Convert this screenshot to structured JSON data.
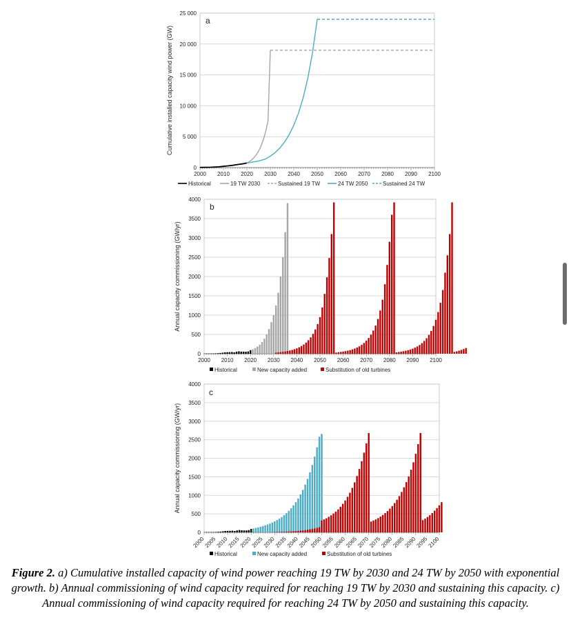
{
  "caption": {
    "label": "Figure 2.",
    "text": " a) Cumulative installed capacity of wind power reaching 19 TW by 2030 and 24 TW by 2050 with exponential growth. b) Annual commissioning of wind capacity required for reaching 19 TW by 2030 and sustaining this capacity. c) Annual commissioning of wind capacity required for reaching 24 TW by 2050 and sustaining this capacity."
  },
  "colors": {
    "historical": "#000000",
    "grey_series": "#a6a6a6",
    "blue_series": "#4bacc6",
    "red_series": "#c00000",
    "grid": "#d9d9d9"
  },
  "chart_data": [
    {
      "panel": "a",
      "type": "line",
      "ylabel": "Cumulative installed capacity wind power (GW)",
      "xlim": [
        2000,
        2100
      ],
      "ylim": [
        0,
        25000
      ],
      "xticks": [
        "2000",
        "2010",
        "2020",
        "2030",
        "2040",
        "2050",
        "2060",
        "2070",
        "2080",
        "2090",
        "2100"
      ],
      "yticks": [
        "0",
        "5 000",
        "10 000",
        "15 000",
        "20 000",
        "25 000"
      ],
      "grid": "horizontal",
      "legend_position": "bottom",
      "series": [
        {
          "name": "Historical",
          "style": "solid",
          "color": "#000000",
          "points": [
            [
              2000,
              18
            ],
            [
              2002,
              31
            ],
            [
              2004,
              48
            ],
            [
              2006,
              74
            ],
            [
              2008,
              121
            ],
            [
              2010,
              198
            ],
            [
              2012,
              283
            ],
            [
              2014,
              370
            ],
            [
              2016,
              487
            ],
            [
              2018,
              591
            ],
            [
              2020,
              733
            ]
          ]
        },
        {
          "name": "19 TW 2030",
          "style": "solid",
          "color": "#a6a6a6",
          "points": [
            [
              2020,
              733
            ],
            [
              2021,
              950
            ],
            [
              2022,
              1230
            ],
            [
              2023,
              1590
            ],
            [
              2024,
              2060
            ],
            [
              2025,
              2670
            ],
            [
              2026,
              3460
            ],
            [
              2027,
              4480
            ],
            [
              2028,
              5800
            ],
            [
              2029,
              7510
            ],
            [
              2030,
              19000
            ]
          ]
        },
        {
          "name": "Sustained 19 TW",
          "style": "dashed",
          "color": "#a6a6a6",
          "points": [
            [
              2030,
              19000
            ],
            [
              2100,
              19000
            ]
          ]
        },
        {
          "name": "24 TW 2050",
          "style": "solid",
          "color": "#4bacc6",
          "points": [
            [
              2020,
              733
            ],
            [
              2025,
              1050
            ],
            [
              2028,
              1400
            ],
            [
              2030,
              1850
            ],
            [
              2032,
              2400
            ],
            [
              2034,
              3150
            ],
            [
              2036,
              4100
            ],
            [
              2038,
              5300
            ],
            [
              2040,
              6850
            ],
            [
              2042,
              8800
            ],
            [
              2044,
              11300
            ],
            [
              2046,
              14500
            ],
            [
              2048,
              18600
            ],
            [
              2050,
              24000
            ]
          ]
        },
        {
          "name": "Sustained 24 TW",
          "style": "dashed",
          "color": "#4bacc6",
          "points": [
            [
              2050,
              24000
            ],
            [
              2100,
              24000
            ]
          ]
        }
      ]
    },
    {
      "panel": "b",
      "type": "bar",
      "ylabel": "Annual capacity commissioning (GW/yr)",
      "xlim": [
        2000,
        2100
      ],
      "ylim": [
        0,
        4000
      ],
      "xticks": [
        "2000",
        "2010",
        "2020",
        "2030",
        "2040",
        "2050",
        "2060",
        "2070",
        "2080",
        "2090",
        "2100"
      ],
      "yticks": [
        "0",
        "500",
        "1000",
        "1500",
        "2000",
        "2500",
        "3000",
        "3500",
        "4000"
      ],
      "grid": "horizontal",
      "legend_position": "bottom",
      "series": [
        {
          "name": "Historical",
          "color": "#000000",
          "start_year": 2000,
          "values": [
            4,
            7,
            7,
            8,
            8,
            11,
            15,
            20,
            28,
            38,
            40,
            41,
            45,
            36,
            52,
            63,
            55,
            53,
            51,
            60,
            93
          ]
        },
        {
          "name": "New capacity added",
          "color": "#a6a6a6",
          "start_year": 2021,
          "values": [
            115,
            145,
            185,
            235,
            305,
            390,
            500,
            640,
            820,
            1000,
            1250,
            1580,
            2000,
            2500,
            3150,
            3900
          ]
        },
        {
          "name": "Substitution of old turbines",
          "color": "#c00000",
          "start_year": 2031,
          "values": [
            30,
            35,
            42,
            50,
            60,
            72,
            85,
            100,
            118,
            140,
            168,
            200,
            240,
            290,
            350,
            425,
            515,
            630,
            770,
            950,
            1200,
            1550,
            1980,
            2480,
            3100,
            3920,
            30,
            40,
            48,
            57,
            68,
            80,
            95,
            113,
            135,
            162,
            193,
            232,
            280,
            338,
            408,
            495,
            600,
            730,
            900,
            1120,
            1400,
            1800,
            2300,
            2900,
            3600,
            3920,
            35,
            45,
            55,
            65,
            78,
            93,
            110,
            132,
            158,
            190,
            228,
            275,
            332,
            402,
            488,
            592,
            720,
            880,
            1080,
            1320,
            1650,
            2100,
            2550,
            3100,
            3920,
            48,
            62,
            80,
            100,
            122,
            148
          ]
        }
      ]
    },
    {
      "panel": "c",
      "type": "bar",
      "ylabel": "Annual capacity commissioning (GW/yr)",
      "xlim": [
        2000,
        2100
      ],
      "ylim": [
        0,
        4000
      ],
      "xticks": [
        "2000",
        "2005",
        "2010",
        "2015",
        "2020",
        "2025",
        "2030",
        "2035",
        "2040",
        "2045",
        "2050",
        "2055",
        "2060",
        "2065",
        "2070",
        "2075",
        "2080",
        "2085",
        "2090",
        "2095",
        "2100"
      ],
      "yticks": [
        "0",
        "500",
        "1000",
        "1500",
        "2000",
        "2500",
        "3000",
        "3500",
        "4000"
      ],
      "grid": "horizontal",
      "legend_position": "bottom",
      "series": [
        {
          "name": "Historical",
          "color": "#000000",
          "start_year": 2000,
          "values": [
            4,
            7,
            7,
            8,
            8,
            11,
            15,
            20,
            28,
            38,
            40,
            41,
            45,
            36,
            52,
            63,
            55,
            53,
            51,
            60,
            93
          ]
        },
        {
          "name": "New capacity added",
          "color": "#4bacc6",
          "start_year": 2021,
          "values": [
            105,
            120,
            135,
            152,
            170,
            190,
            212,
            237,
            265,
            296,
            331,
            370,
            414,
            463,
            518,
            580,
            650,
            728,
            815,
            913,
            1023,
            1147,
            1286,
            1443,
            1620,
            1818,
            2042,
            2295,
            2580,
            2655
          ]
        },
        {
          "name": "Substitution of old turbines",
          "color": "#c00000",
          "start_year": 2030,
          "values": [
            8,
            10,
            12,
            14,
            16,
            19,
            22,
            26,
            30,
            35,
            40,
            45,
            52,
            60,
            70,
            80,
            92,
            105,
            120,
            140,
            320,
            350,
            380,
            420,
            460,
            510,
            560,
            620,
            690,
            770,
            860,
            960,
            1070,
            1200,
            1350,
            1520,
            1710,
            1920,
            2150,
            2400,
            2680,
            290,
            320,
            350,
            385,
            425,
            470,
            520,
            575,
            640,
            710,
            790,
            880,
            980,
            1090,
            1215,
            1355,
            1510,
            1690,
            1890,
            2120,
            2380,
            2680,
            330,
            370,
            415,
            465,
            520,
            585,
            655,
            730,
            815
          ]
        }
      ]
    }
  ],
  "legends": {
    "a": [
      "Historical",
      "19 TW 2030",
      "Sustained 19 TW",
      "24 TW 2050",
      "Sustained 24 TW"
    ],
    "b": [
      "Historical",
      "New capacity added",
      "Substitution of old turbines"
    ],
    "c": [
      "Historical",
      "New capacity added",
      "Substitution of old turbines"
    ]
  },
  "panel_letters": [
    "a",
    "b",
    "c"
  ]
}
